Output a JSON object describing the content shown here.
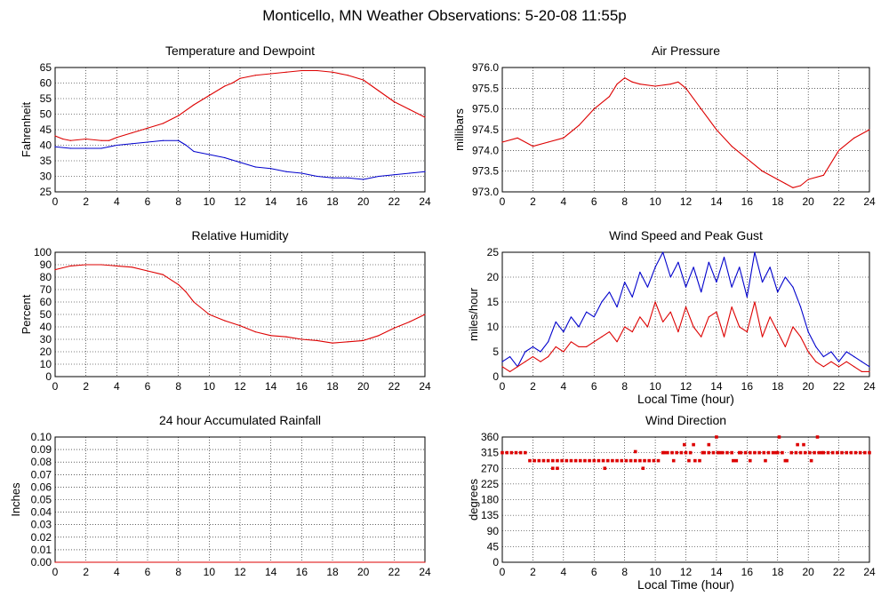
{
  "page": {
    "title": "Monticello, MN Weather Observations: 5-20-08 11:55p",
    "colors": {
      "series_red": "#dd0000",
      "series_blue": "#0000cc",
      "grid": "#000000",
      "background": "#ffffff"
    }
  },
  "chart_data": [
    {
      "id": "temp",
      "type": "line",
      "title": "Temperature and Dewpoint",
      "xlabel": "",
      "ylabel": "Fahrenheit",
      "xlim": [
        0,
        24
      ],
      "ylim": [
        25,
        65
      ],
      "xticks": [
        0,
        2,
        4,
        6,
        8,
        10,
        12,
        14,
        16,
        18,
        20,
        22,
        24
      ],
      "yticks": [
        25,
        30,
        35,
        40,
        45,
        50,
        55,
        60,
        65
      ],
      "ytick_format": "int",
      "grid": true,
      "series": [
        {
          "color": "#dd0000",
          "style": "line",
          "x": [
            0,
            0.5,
            1,
            2,
            3,
            3.5,
            4,
            5,
            6,
            7,
            8,
            9,
            10,
            11,
            11.5,
            12,
            13,
            14,
            15,
            16,
            17,
            18,
            19,
            20,
            21,
            22,
            23,
            24
          ],
          "y": [
            43,
            42,
            41.5,
            42,
            41.5,
            41.5,
            42.5,
            44,
            45.5,
            47,
            49.5,
            53,
            56,
            59,
            60,
            61.5,
            62.5,
            63,
            63.5,
            64,
            64,
            63.5,
            62.5,
            61,
            57.5,
            54,
            51.5,
            49
          ]
        },
        {
          "color": "#0000cc",
          "style": "line",
          "x": [
            0,
            1,
            2,
            3,
            4,
            5,
            6,
            7,
            8,
            8.5,
            9,
            10,
            11,
            12,
            13,
            14,
            15,
            16,
            17,
            18,
            19,
            20,
            21,
            22,
            23,
            24
          ],
          "y": [
            39.5,
            39,
            39,
            39,
            40,
            40.5,
            41,
            41.5,
            41.5,
            40,
            38,
            37,
            36,
            34.5,
            33,
            32.5,
            31.5,
            31,
            30,
            29.5,
            29.5,
            29,
            30,
            30.5,
            31,
            31.5
          ]
        }
      ]
    },
    {
      "id": "pressure",
      "type": "line",
      "title": "Air Pressure",
      "xlabel": "",
      "ylabel": "millibars",
      "xlim": [
        0,
        24
      ],
      "ylim": [
        973.0,
        976.0
      ],
      "xticks": [
        0,
        2,
        4,
        6,
        8,
        10,
        12,
        14,
        16,
        18,
        20,
        22,
        24
      ],
      "yticks": [
        973.0,
        973.5,
        974.0,
        974.5,
        975.0,
        975.5,
        976.0
      ],
      "ytick_format": "1dp",
      "grid": true,
      "series": [
        {
          "color": "#dd0000",
          "style": "line",
          "x": [
            0,
            1,
            2,
            3,
            4,
            5,
            6,
            7,
            7.5,
            8,
            8.5,
            9,
            10,
            11,
            11.5,
            12,
            13,
            14,
            15,
            16,
            17,
            18,
            18.5,
            19,
            19.5,
            20,
            21,
            22,
            23,
            24
          ],
          "y": [
            974.2,
            974.3,
            974.1,
            974.2,
            974.3,
            974.6,
            975.0,
            975.3,
            975.6,
            975.75,
            975.65,
            975.6,
            975.55,
            975.6,
            975.65,
            975.5,
            975.0,
            974.5,
            974.1,
            973.8,
            973.5,
            973.3,
            973.2,
            973.1,
            973.15,
            973.3,
            973.4,
            974.0,
            974.3,
            974.5
          ]
        }
      ]
    },
    {
      "id": "humidity",
      "type": "line",
      "title": "Relative Humidity",
      "xlabel": "",
      "ylabel": "Percent",
      "xlim": [
        0,
        24
      ],
      "ylim": [
        0,
        100
      ],
      "xticks": [
        0,
        2,
        4,
        6,
        8,
        10,
        12,
        14,
        16,
        18,
        20,
        22,
        24
      ],
      "yticks": [
        0,
        10,
        20,
        30,
        40,
        50,
        60,
        70,
        80,
        90,
        100
      ],
      "ytick_format": "int",
      "grid": true,
      "series": [
        {
          "color": "#dd0000",
          "style": "line",
          "x": [
            0,
            1,
            2,
            3,
            4,
            5,
            6,
            7,
            8,
            8.5,
            9,
            10,
            11,
            12,
            13,
            14,
            15,
            16,
            17,
            18,
            19,
            20,
            21,
            22,
            23,
            24
          ],
          "y": [
            86,
            89,
            90,
            90,
            89,
            88,
            85,
            82,
            74,
            68,
            60,
            50,
            45,
            41,
            36,
            33,
            32,
            30,
            29,
            27,
            28,
            29,
            33,
            39,
            44,
            50
          ]
        }
      ]
    },
    {
      "id": "wind",
      "type": "line",
      "title": "Wind Speed and Peak Gust",
      "xlabel": "Local Time (hour)",
      "ylabel": "miles/hour",
      "xlim": [
        0,
        24
      ],
      "ylim": [
        0,
        25
      ],
      "xticks": [
        0,
        2,
        4,
        6,
        8,
        10,
        12,
        14,
        16,
        18,
        20,
        22,
        24
      ],
      "yticks": [
        0,
        5,
        10,
        15,
        20,
        25
      ],
      "ytick_format": "int",
      "grid": true,
      "series": [
        {
          "color": "#0000cc",
          "style": "line",
          "x": [
            0,
            0.5,
            1,
            1.5,
            2,
            2.5,
            3,
            3.5,
            4,
            4.5,
            5,
            5.5,
            6,
            6.5,
            7,
            7.5,
            8,
            8.5,
            9,
            9.5,
            10,
            10.5,
            11,
            11.5,
            12,
            12.5,
            13,
            13.5,
            14,
            14.5,
            15,
            15.5,
            16,
            16.5,
            17,
            17.5,
            18,
            18.5,
            19,
            19.5,
            20,
            20.5,
            21,
            21.5,
            22,
            22.5,
            23,
            23.5,
            24
          ],
          "y": [
            3,
            4,
            2,
            5,
            6,
            5,
            7,
            11,
            9,
            12,
            10,
            13,
            12,
            15,
            17,
            14,
            19,
            16,
            21,
            18,
            22,
            25,
            20,
            23,
            18,
            22,
            17,
            23,
            19,
            24,
            18,
            22,
            16,
            25,
            19,
            22,
            17,
            20,
            18,
            14,
            9,
            6,
            4,
            5,
            3,
            5,
            4,
            3,
            2
          ]
        },
        {
          "color": "#dd0000",
          "style": "line",
          "x": [
            0,
            0.5,
            1,
            1.5,
            2,
            2.5,
            3,
            3.5,
            4,
            4.5,
            5,
            5.5,
            6,
            6.5,
            7,
            7.5,
            8,
            8.5,
            9,
            9.5,
            10,
            10.5,
            11,
            11.5,
            12,
            12.5,
            13,
            13.5,
            14,
            14.5,
            15,
            15.5,
            16,
            16.5,
            17,
            17.5,
            18,
            18.5,
            19,
            19.5,
            20,
            20.5,
            21,
            21.5,
            22,
            22.5,
            23,
            23.5,
            24
          ],
          "y": [
            2,
            1,
            2,
            3,
            4,
            3,
            4,
            6,
            5,
            7,
            6,
            6,
            7,
            8,
            9,
            7,
            10,
            9,
            12,
            10,
            15,
            11,
            13,
            9,
            14,
            10,
            8,
            12,
            13,
            8,
            14,
            10,
            9,
            15,
            8,
            12,
            9,
            6,
            10,
            8,
            5,
            3,
            2,
            3,
            2,
            3,
            2,
            1,
            1
          ]
        }
      ]
    },
    {
      "id": "rain",
      "type": "line",
      "title": "24 hour Accumulated Rainfall",
      "xlabel": "",
      "ylabel": "Inches",
      "xlim": [
        0,
        24
      ],
      "ylim": [
        0,
        0.1
      ],
      "xticks": [
        0,
        2,
        4,
        6,
        8,
        10,
        12,
        14,
        16,
        18,
        20,
        22,
        24
      ],
      "yticks": [
        0,
        0.01,
        0.02,
        0.03,
        0.04,
        0.05,
        0.06,
        0.07,
        0.08,
        0.09,
        0.1
      ],
      "ytick_format": "2dp",
      "grid": true,
      "series": [
        {
          "color": "#dd0000",
          "style": "line",
          "x": [
            0,
            24
          ],
          "y": [
            0,
            0
          ]
        }
      ]
    },
    {
      "id": "direction",
      "type": "scatter",
      "title": "Wind Direction",
      "xlabel": "Local Time (hour)",
      "ylabel": "degrees",
      "xlim": [
        0,
        24
      ],
      "ylim": [
        0,
        360
      ],
      "xticks": [
        0,
        2,
        4,
        6,
        8,
        10,
        12,
        14,
        16,
        18,
        20,
        22,
        24
      ],
      "yticks": [
        0,
        45,
        90,
        135,
        180,
        225,
        270,
        315,
        360
      ],
      "ytick_format": "int",
      "grid": true,
      "series": [
        {
          "color": "#dd0000",
          "style": "points",
          "x": [
            0,
            0.3,
            0.6,
            0.9,
            1.2,
            1.5,
            1.8,
            2.1,
            2.4,
            2.7,
            3.0,
            3.3,
            3.6,
            3.9,
            4.2,
            4.5,
            4.8,
            5.1,
            5.4,
            5.7,
            6.0,
            6.3,
            6.6,
            6.9,
            7.2,
            7.5,
            7.8,
            8.1,
            8.4,
            8.7,
            9.0,
            9.3,
            9.6,
            9.9,
            10.2,
            10.5,
            10.8,
            11.1,
            11.4,
            11.7,
            12.0,
            12.3,
            12.6,
            12.9,
            13.2,
            13.5,
            13.8,
            14.1,
            14.4,
            14.7,
            15.0,
            15.3,
            15.6,
            15.9,
            16.2,
            16.5,
            16.8,
            17.1,
            17.4,
            17.7,
            18.0,
            18.3,
            18.6,
            18.9,
            19.2,
            19.5,
            19.8,
            20.1,
            20.4,
            20.7,
            21.0,
            21.3,
            21.6,
            21.9,
            22.2,
            22.5,
            22.8,
            23.1,
            23.4,
            23.7,
            24.0,
            3.3,
            3.6,
            6.7,
            8.7,
            9.2,
            10.6,
            11.2,
            11.9,
            12.2,
            12.5,
            13.1,
            13.5,
            14.0,
            14.2,
            15.1,
            15.5,
            16.2,
            17.2,
            17.9,
            18.1,
            18.5,
            19.3,
            19.7,
            20.2,
            20.6,
            20.9
          ],
          "y": [
            315,
            315,
            315,
            315,
            315,
            315,
            292,
            292,
            292,
            292,
            292,
            292,
            292,
            292,
            292,
            292,
            292,
            292,
            292,
            292,
            292,
            292,
            292,
            292,
            292,
            292,
            292,
            292,
            292,
            292,
            292,
            292,
            292,
            292,
            292,
            315,
            315,
            315,
            315,
            315,
            315,
            315,
            292,
            292,
            315,
            315,
            315,
            315,
            315,
            315,
            315,
            292,
            315,
            315,
            315,
            315,
            315,
            315,
            315,
            315,
            315,
            315,
            292,
            315,
            315,
            315,
            315,
            315,
            315,
            315,
            315,
            315,
            315,
            315,
            315,
            315,
            315,
            315,
            315,
            315,
            315,
            270,
            270,
            270,
            318,
            270,
            315,
            292,
            338,
            292,
            338,
            315,
            338,
            360,
            315,
            292,
            315,
            292,
            292,
            315,
            360,
            292,
            338,
            338,
            292,
            360,
            315
          ]
        }
      ]
    }
  ]
}
